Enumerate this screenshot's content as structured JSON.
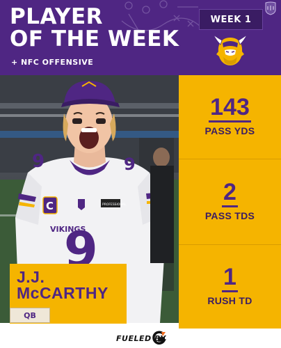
{
  "header": {
    "title_line1": "PLAYER",
    "title_line2": "OF THE WEEK",
    "subtitle": "+ NFC OFFENSIVE",
    "week_label": "WEEK 1",
    "nfl_logo": "nfl-shield-icon",
    "team_logo": "vikings-logo"
  },
  "player": {
    "first": "J.J.",
    "last": "McCARTHY",
    "position": "QB",
    "jersey_number": "9",
    "team_wordmark": "VIKINGS",
    "captain_patch": "C",
    "jersey_patch": "PROFESSIONAL"
  },
  "stats": [
    {
      "value": "143",
      "label": "PASS YDS"
    },
    {
      "value": "2",
      "label": "PASS TDS"
    },
    {
      "value": "1",
      "label": "RUSH TD"
    }
  ],
  "footer": {
    "sponsor_text": "FUELED BY",
    "sponsor_logo": "gatorade-g-icon"
  },
  "colors": {
    "purple": "#4f2683",
    "gold": "#f5b400",
    "dark_purple": "#3a1c63"
  }
}
